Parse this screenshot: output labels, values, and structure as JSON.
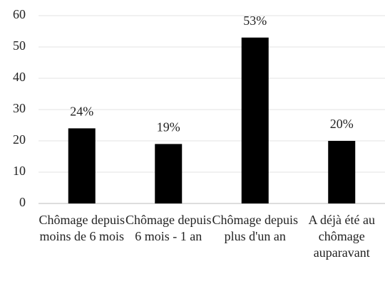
{
  "chart_data": {
    "type": "bar",
    "categories": [
      "Chômage depuis moins de 6 mois",
      "Chômage depuis 6 mois - 1 an",
      "Chômage depuis plus d'un an",
      "A déjà été au chômage auparavant"
    ],
    "values": [
      24,
      19,
      53,
      20
    ],
    "value_labels": [
      "24%",
      "19%",
      "53%",
      "20%"
    ],
    "color": "#000000",
    "ylim": [
      0,
      60
    ],
    "yticks": [
      0,
      10,
      20,
      30,
      40,
      50,
      60
    ],
    "grid": true
  }
}
